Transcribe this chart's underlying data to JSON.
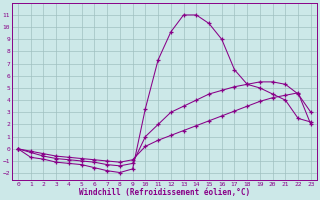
{
  "xlabel": "Windchill (Refroidissement éolien,°C)",
  "x": [
    0,
    1,
    2,
    3,
    4,
    5,
    6,
    7,
    8,
    9,
    10,
    11,
    12,
    13,
    14,
    15,
    16,
    17,
    18,
    19,
    20,
    21,
    22,
    23
  ],
  "line1": [
    0.0,
    -0.7,
    -0.85,
    -1.1,
    -1.2,
    -1.3,
    -1.55,
    -1.8,
    -1.95,
    -1.65,
    3.3,
    7.3,
    9.6,
    11.0,
    11.0,
    10.3,
    9.0,
    6.5,
    5.3,
    5.0,
    4.5,
    4.0,
    2.5,
    2.2
  ],
  "line2": [
    0.0,
    -0.3,
    -0.6,
    -0.8,
    -0.9,
    -1.0,
    -1.1,
    -1.3,
    -1.4,
    -1.2,
    1.0,
    2.0,
    3.0,
    3.5,
    4.0,
    4.5,
    4.8,
    5.1,
    5.3,
    5.5,
    5.5,
    5.3,
    4.5,
    3.0
  ],
  "line3": [
    0.0,
    -0.2,
    -0.4,
    -0.6,
    -0.7,
    -0.8,
    -0.9,
    -1.0,
    -1.1,
    -0.9,
    0.2,
    0.7,
    1.1,
    1.5,
    1.9,
    2.3,
    2.7,
    3.1,
    3.5,
    3.9,
    4.2,
    4.4,
    4.6,
    2.0
  ],
  "line_color": "#880088",
  "marker": "+",
  "bg_color": "#cce8e8",
  "grid_color": "#a0c0c0",
  "ylim": [
    -2.6,
    12.0
  ],
  "xlim": [
    -0.5,
    23.5
  ],
  "yticks": [
    -2,
    -1,
    0,
    1,
    2,
    3,
    4,
    5,
    6,
    7,
    8,
    9,
    10,
    11
  ],
  "xticks": [
    0,
    1,
    2,
    3,
    4,
    5,
    6,
    7,
    8,
    9,
    10,
    11,
    12,
    13,
    14,
    15,
    16,
    17,
    18,
    19,
    20,
    21,
    22,
    23
  ],
  "tick_fontsize": 4.5,
  "xlabel_fontsize": 5.5,
  "marker_size": 3.0,
  "line_width": 0.75
}
